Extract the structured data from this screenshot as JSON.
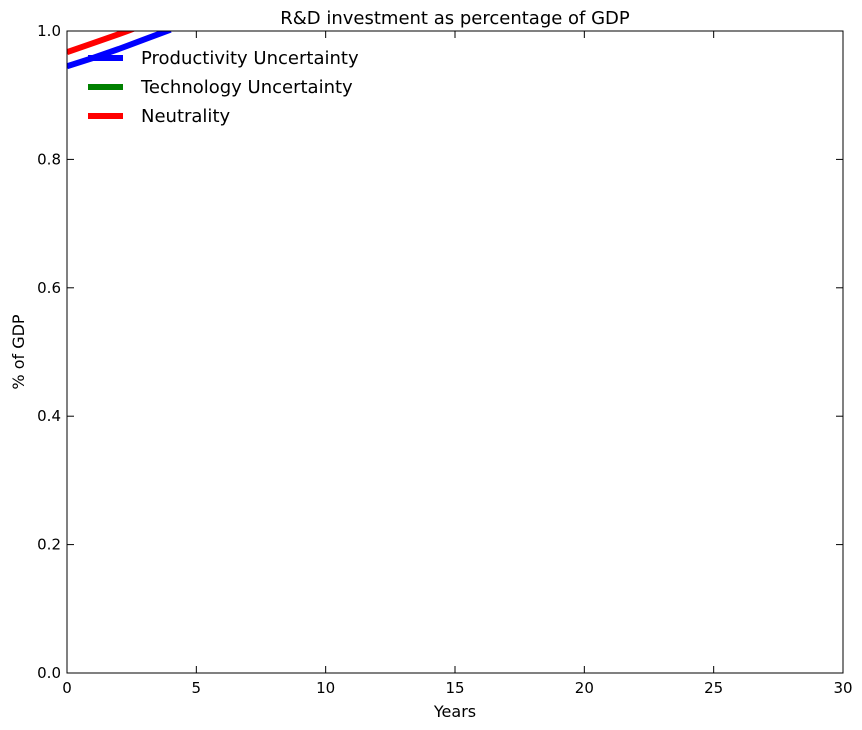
{
  "chart_data": {
    "type": "line",
    "title": "R&D investment as percentage of  GDP",
    "xlabel": "Years",
    "ylabel": "% of GDP",
    "xlim": [
      0,
      30
    ],
    "ylim": [
      0,
      1.0
    ],
    "x_ticks": [
      0,
      5,
      10,
      15,
      20,
      25,
      30
    ],
    "y_ticks": [
      0.0,
      0.2,
      0.4,
      0.6,
      0.8,
      1.0
    ],
    "x_tick_labels": [
      "0",
      "5",
      "10",
      "15",
      "20",
      "25",
      "30"
    ],
    "y_tick_labels": [
      "0.0",
      "0.2",
      "0.4",
      "0.6",
      "0.8",
      "1.0"
    ],
    "grid": false,
    "legend_position": "top-left",
    "series": [
      {
        "name": "Productivity Uncertainty",
        "color": "#0000ff",
        "x": [
          0,
          1,
          2,
          3,
          4
        ],
        "y": [
          0.945,
          0.958,
          0.972,
          0.987,
          1.002
        ]
      },
      {
        "name": "Technology Uncertainty",
        "color": "#008000",
        "x": [],
        "y": []
      },
      {
        "name": "Neutrality",
        "color": "#ff0000",
        "x": [
          0,
          1,
          2,
          3
        ],
        "y": [
          0.967,
          0.981,
          0.995,
          1.01
        ]
      }
    ]
  }
}
